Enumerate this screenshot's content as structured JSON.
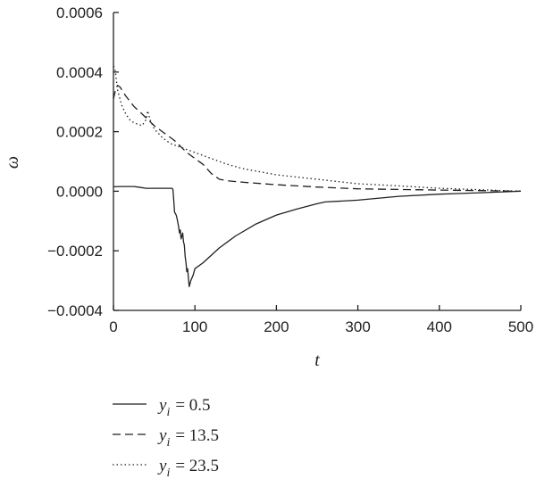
{
  "chart_data": {
    "type": "line",
    "xlabel": "t",
    "ylabel": "ω",
    "xlim": [
      0,
      500
    ],
    "ylim": [
      -0.0004,
      0.0006
    ],
    "x_ticks": [
      "0",
      "100",
      "200",
      "300",
      "400",
      "500"
    ],
    "y_ticks": [
      "−0.0004",
      "−0.0002",
      "0.0000",
      "0.0002",
      "0.0004",
      "0.0006"
    ],
    "grid": false,
    "legend_position": "bottom-left, below plot",
    "series": [
      {
        "name": "y_i = 0.5",
        "legend_var": "y",
        "legend_sub": "i",
        "legend_value": "= 0.5",
        "line_style": "solid",
        "points": [
          [
            0,
            1.5e-05
          ],
          [
            10,
            1.6e-05
          ],
          [
            25,
            1.6e-05
          ],
          [
            30,
            1.4e-05
          ],
          [
            40,
            1e-05
          ],
          [
            60,
            1e-05
          ],
          [
            72,
            1e-05
          ],
          [
            73,
            5e-06
          ],
          [
            74,
            -3e-05
          ],
          [
            75,
            -7e-05
          ],
          [
            76,
            -7.5e-05
          ],
          [
            77,
            -8e-05
          ],
          [
            78,
            -9e-05
          ],
          [
            80,
            -0.00012
          ],
          [
            81,
            -0.00014
          ],
          [
            82,
            -0.00013
          ],
          [
            83,
            -0.00016
          ],
          [
            84,
            -0.00015
          ],
          [
            85,
            -0.00014
          ],
          [
            86,
            -0.00017
          ],
          [
            87,
            -0.00018
          ],
          [
            88,
            -0.00022
          ],
          [
            89,
            -0.00024
          ],
          [
            90,
            -0.00027
          ],
          [
            91,
            -0.00026
          ],
          [
            92,
            -0.00029
          ],
          [
            93,
            -0.00032
          ],
          [
            95,
            -0.0003
          ],
          [
            98,
            -0.00028
          ],
          [
            100,
            -0.00026
          ],
          [
            110,
            -0.00024
          ],
          [
            130,
            -0.00019
          ],
          [
            150,
            -0.00015
          ],
          [
            175,
            -0.00011
          ],
          [
            200,
            -8e-05
          ],
          [
            225,
            -6e-05
          ],
          [
            250,
            -4.2e-05
          ],
          [
            260,
            -3.6e-05
          ],
          [
            300,
            -3e-05
          ],
          [
            350,
            -1.7e-05
          ],
          [
            400,
            -1e-05
          ],
          [
            450,
            -5e-06
          ],
          [
            500,
            0
          ]
        ]
      },
      {
        "name": "y_i = 13.5",
        "legend_var": "y",
        "legend_sub": "i",
        "legend_value": "= 13.5",
        "line_style": "dashed",
        "points": [
          [
            0,
            0.00031
          ],
          [
            3,
            0.000345
          ],
          [
            5,
            0.000355
          ],
          [
            8,
            0.00035
          ],
          [
            15,
            0.00032
          ],
          [
            25,
            0.000285
          ],
          [
            35,
            0.00026
          ],
          [
            50,
            0.00022
          ],
          [
            60,
            0.0002
          ],
          [
            75,
            0.00017
          ],
          [
            90,
            0.00013
          ],
          [
            100,
            0.00011
          ],
          [
            110,
            9e-05
          ],
          [
            120,
            6e-05
          ],
          [
            130,
            4e-05
          ],
          [
            140,
            3.5e-05
          ],
          [
            160,
            3e-05
          ],
          [
            200,
            2.2e-05
          ],
          [
            250,
            1.4e-05
          ],
          [
            300,
            8e-06
          ],
          [
            350,
            6e-06
          ],
          [
            400,
            4e-06
          ],
          [
            450,
            2e-06
          ],
          [
            500,
            0
          ]
        ]
      },
      {
        "name": "y_i = 23.5",
        "legend_var": "y",
        "legend_sub": "i",
        "legend_value": "= 23.5",
        "line_style": "dotted",
        "points": [
          [
            0,
            0.00042
          ],
          [
            2,
            0.00041
          ],
          [
            5,
            0.00034
          ],
          [
            10,
            0.00029
          ],
          [
            15,
            0.00026
          ],
          [
            20,
            0.00024
          ],
          [
            25,
            0.00023
          ],
          [
            30,
            0.000225
          ],
          [
            35,
            0.00022
          ],
          [
            40,
            0.00024
          ],
          [
            42,
            0.00027
          ],
          [
            45,
            0.00024
          ],
          [
            50,
            0.00021
          ],
          [
            60,
            0.00018
          ],
          [
            70,
            0.00016
          ],
          [
            80,
            0.00015
          ],
          [
            90,
            0.00014
          ],
          [
            100,
            0.00013
          ],
          [
            120,
            0.00011
          ],
          [
            140,
            9e-05
          ],
          [
            160,
            7.5e-05
          ],
          [
            200,
            5.5e-05
          ],
          [
            250,
            4e-05
          ],
          [
            300,
            2.5e-05
          ],
          [
            350,
            1.8e-05
          ],
          [
            400,
            1e-05
          ],
          [
            450,
            5e-06
          ],
          [
            500,
            0
          ]
        ]
      }
    ]
  }
}
